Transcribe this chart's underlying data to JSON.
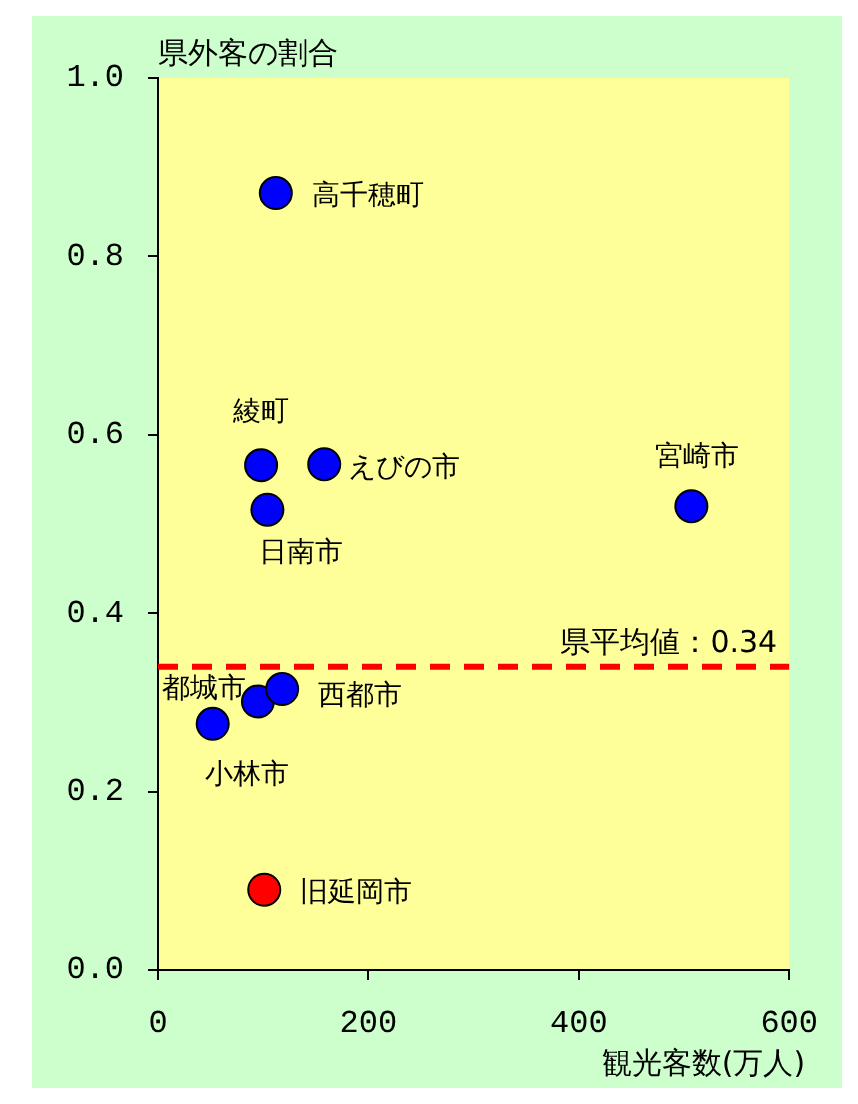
{
  "chart_data": {
    "type": "scatter",
    "xlabel": "観光客数(万人)",
    "ylabel": "県外客の割合",
    "x": [
      112,
      98,
      158,
      104,
      507,
      95,
      52,
      118,
      101
    ],
    "series": [
      {
        "colors": [
          "#0000ff",
          "#0000ff",
          "#0000ff",
          "#0000ff",
          "#0000ff",
          "#0000ff",
          "#0000ff",
          "#0000ff",
          "#ff0000"
        ],
        "values": [
          0.871,
          0.566,
          0.567,
          0.516,
          0.52,
          0.301,
          0.276,
          0.315,
          0.09
        ]
      }
    ],
    "xlim": [
      0,
      600
    ],
    "xticks": [
      0,
      200,
      400,
      600
    ],
    "ylim": [
      0,
      1
    ],
    "yticks": [
      {
        "value": 0,
        "label": "0.0"
      },
      0.2,
      0.4,
      0.6,
      0.8,
      {
        "value": 1,
        "label": "1.0"
      }
    ],
    "ref_lines": [
      {
        "axis": "y",
        "value": 0.34,
        "label": "県平均値：0.34",
        "color": "#ff0000",
        "line_style": "dashed"
      }
    ],
    "annotations": [
      {
        "text": "高千穂町",
        "x": 112,
        "y": 0.871
      },
      {
        "text": "綾町",
        "x": 98,
        "y": 0.566
      },
      {
        "text": "えびの市",
        "x": 158,
        "y": 0.567
      },
      {
        "text": "日南市",
        "x": 104,
        "y": 0.516
      },
      {
        "text": "宮崎市",
        "x": 507,
        "y": 0.52
      },
      {
        "text": "都城市",
        "x": 95,
        "y": 0.301
      },
      {
        "text": "小林市",
        "x": 52,
        "y": 0.276
      },
      {
        "text": "西都市",
        "x": 118,
        "y": 0.315
      },
      {
        "text": "旧延岡市",
        "x": 101,
        "y": 0.09
      }
    ],
    "marker": "circle",
    "grid": false,
    "legend": false
  }
}
